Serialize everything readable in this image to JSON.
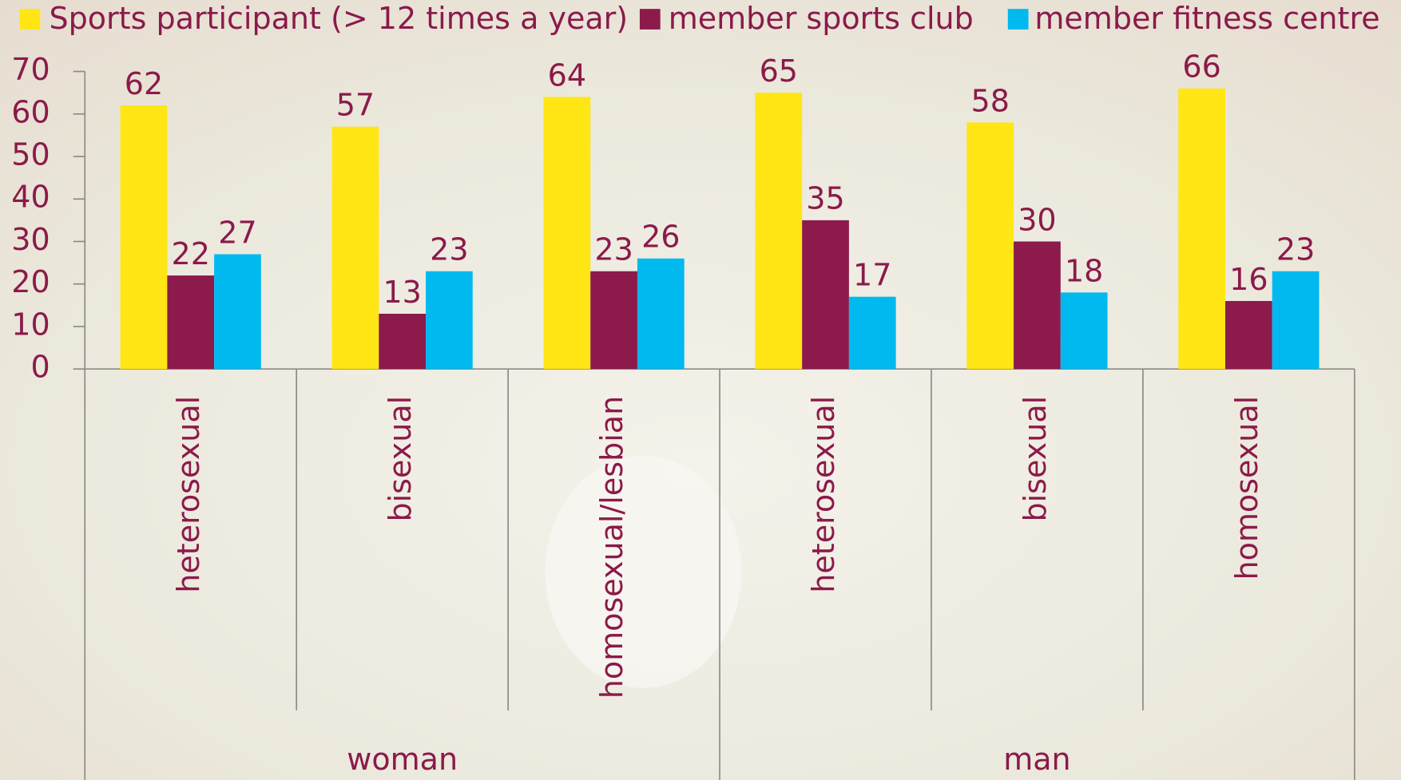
{
  "chart_data": {
    "type": "bar",
    "categories": [
      "heterosexual",
      "bisexual",
      "homosexual/lesbian",
      "heterosexual",
      "bisexual",
      "homosexual"
    ],
    "groups": [
      "woman",
      "man"
    ],
    "series": [
      {
        "name": "Sports participant (> 12 times a year)",
        "color": "#ffe614",
        "values": [
          62,
          57,
          64,
          65,
          58,
          66
        ]
      },
      {
        "name": "member sports club",
        "color": "#8c1a4b",
        "values": [
          22,
          13,
          23,
          35,
          30,
          16
        ]
      },
      {
        "name": "member fitness centre",
        "color": "#00b9ef",
        "values": [
          27,
          23,
          26,
          17,
          18,
          23
        ]
      }
    ],
    "ylim": [
      0,
      70
    ],
    "yticks": [
      0,
      10,
      20,
      30,
      40,
      50,
      60,
      70
    ],
    "grid": false,
    "legend": "top"
  }
}
